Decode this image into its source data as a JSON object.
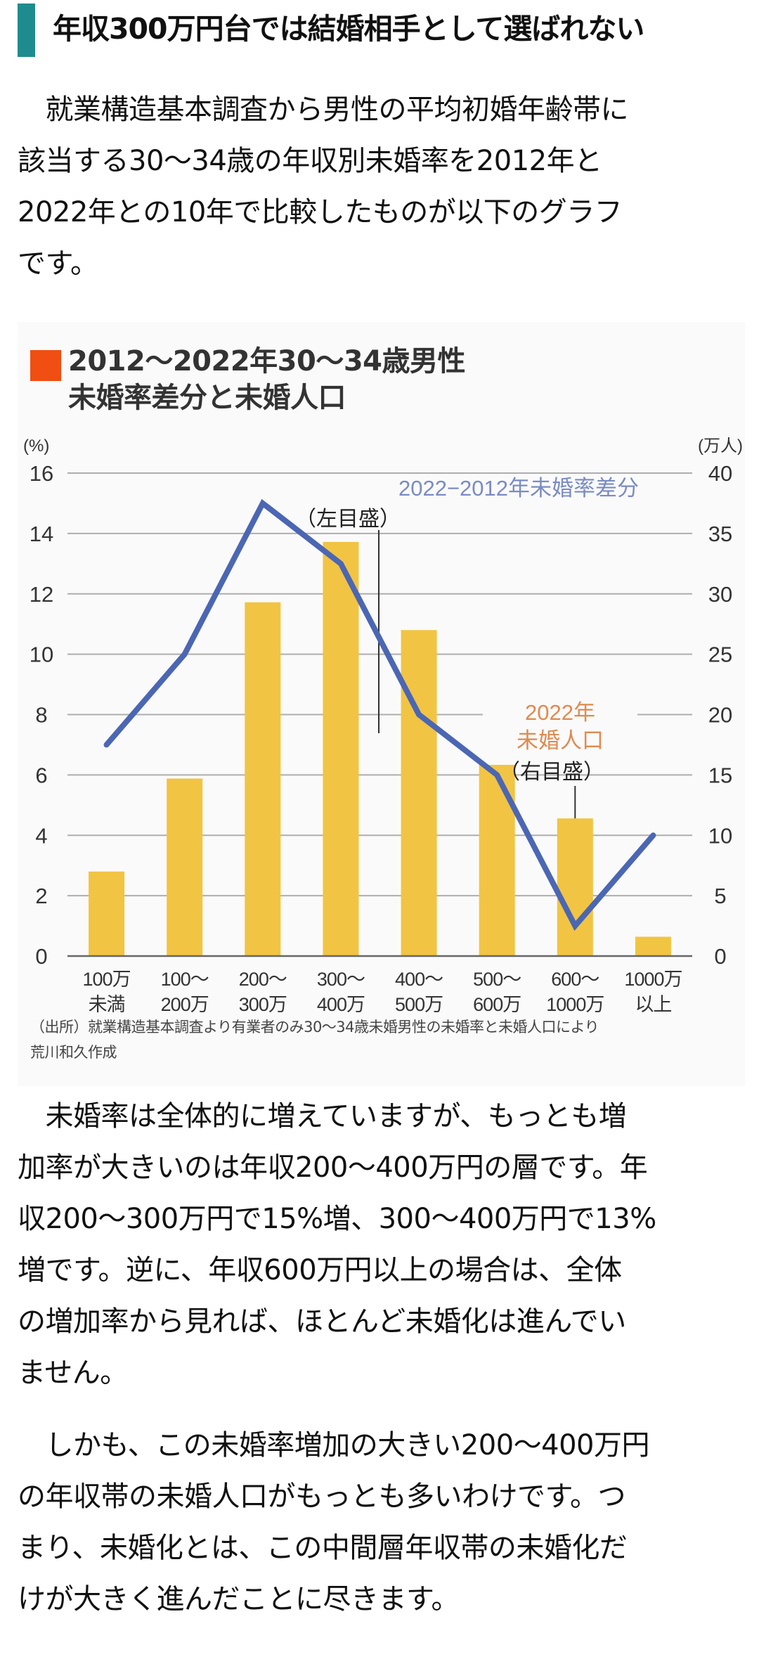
{
  "heading": {
    "title": "年収300万円台では結婚相手として選ばれない",
    "accent_color": "#1E8C8E"
  },
  "paragraphs": [
    {
      "lines": [
        "　就業構造基本調査から男性の平均初婚年齢帯に",
        "該当する30～34歳の年収別未婚率を2012年と",
        "2022年との10年で比較したものが以下のグラフ",
        "です。"
      ]
    },
    {
      "lines": [
        "　未婚率は全体的に増えていますが、もっとも増",
        "加率が大きいのは年収200～400万円の層です。年",
        "収200～300万円で15%増、300～400万円で13%",
        "増です。逆に、年収600万円以上の場合は、全体",
        "の増加率から見れば、ほとんど未婚化は進んでい",
        "ません。"
      ]
    },
    {
      "lines": [
        "　しかも、この未婚率増加の大きい200～400万円",
        "の年収帯の未婚人口がもっとも多いわけです。つ",
        "まり、未婚化とは、この中間層年収帯の未婚化だ",
        "けが大きく進んだことに尽きます。"
      ]
    }
  ],
  "chart_data": {
    "type": "bar",
    "title": "2012～2022年30～34歳男性",
    "subtitle": "未婚率差分と未婚人口",
    "title_marker_color": "#F04E12",
    "categories": [
      [
        "100万",
        "未満"
      ],
      [
        "100～",
        "200万"
      ],
      [
        "200～",
        "300万"
      ],
      [
        "300～",
        "400万"
      ],
      [
        "400～",
        "500万"
      ],
      [
        "500～",
        "600万"
      ],
      [
        "600～",
        "1000万"
      ],
      [
        "1000万",
        "以上"
      ]
    ],
    "series": [
      {
        "name": "2022年未婚人口",
        "type": "bar",
        "axis": "right",
        "unit": "万人",
        "color": "#F2C443",
        "values": [
          7.0,
          14.7,
          29.3,
          34.3,
          27.0,
          16.2,
          11.4,
          1.6
        ]
      },
      {
        "name": "2022−2012年未婚率差分",
        "type": "line",
        "axis": "left",
        "unit": "%",
        "color": "#4B66B3",
        "values": [
          7.0,
          10.0,
          15.0,
          13.0,
          8.0,
          6.0,
          1.0,
          4.0
        ]
      }
    ],
    "left_axis": {
      "unit_label": "(%)",
      "ylim": [
        0,
        16
      ],
      "ticks": [
        0,
        2,
        4,
        6,
        8,
        10,
        12,
        14,
        16
      ]
    },
    "right_axis": {
      "unit_label": "(万人)",
      "ylim": [
        0,
        40
      ],
      "ticks": [
        0,
        5,
        10,
        15,
        20,
        25,
        30,
        35,
        40
      ]
    },
    "grid": true,
    "annotations": {
      "line_label": "2022−2012年未婚率差分",
      "line_label_color": "#7A8BC4",
      "line_axis_note": "（左目盛）",
      "bar_label_line1": "2022年",
      "bar_label_line2": "未婚人口",
      "bar_label_color": "#E08A50",
      "bar_axis_note": "（右目盛）"
    },
    "source": [
      "（出所）就業構造基本調査より有業者のみ30～34歳未婚男性の未婚率と未婚人口により",
      "荒川和久作成"
    ]
  }
}
